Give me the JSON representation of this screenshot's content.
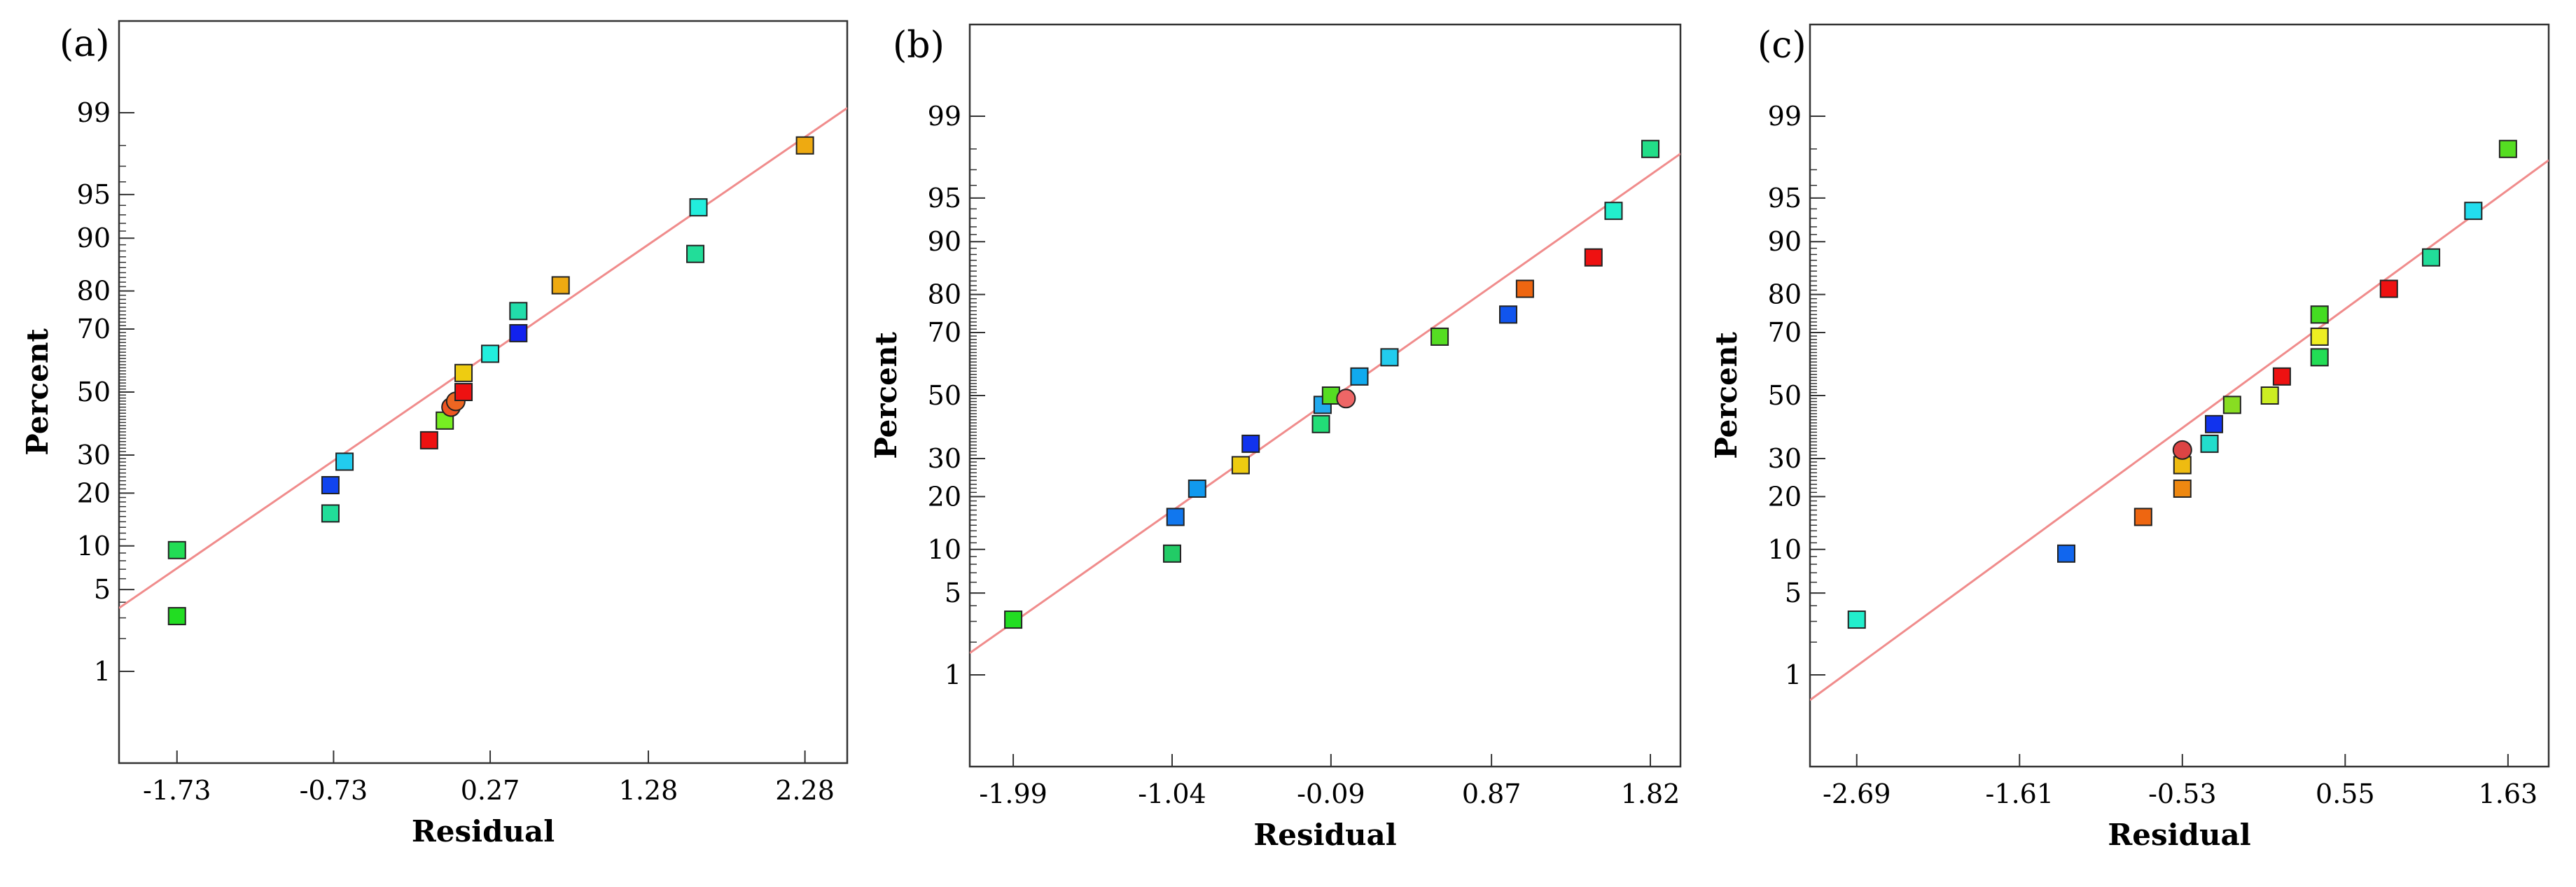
{
  "colors": {
    "fit_line": "#f08c8c",
    "frame": "#333333",
    "marker_stroke": "#222222"
  },
  "chart_data": [
    {
      "type": "scatter",
      "panel_label": "(a)",
      "title": "",
      "xlabel": "Residual",
      "ylabel": "Percent",
      "x_ticks": [
        "-1.73",
        "-0.73",
        "0.27",
        "1.28",
        "2.28"
      ],
      "y_ticks": [
        "1",
        "5",
        "10",
        "20",
        "30",
        "50",
        "70",
        "80",
        "90",
        "95",
        "99"
      ],
      "xlim": [
        -2.1,
        2.55
      ],
      "ylim_percent": [
        0.1,
        99.9
      ],
      "fit_line": {
        "x0": -2.1,
        "p0": 3.6,
        "x1": 2.55,
        "p1": 99.1
      },
      "points": [
        {
          "x": -1.73,
          "p": 3.1,
          "color": "#22dd22",
          "shape": "square"
        },
        {
          "x": -1.73,
          "p": 9.4,
          "color": "#22dd55",
          "shape": "square"
        },
        {
          "x": -0.75,
          "p": 15.6,
          "color": "#22dd99",
          "shape": "square"
        },
        {
          "x": -0.75,
          "p": 21.9,
          "color": "#1144ee",
          "shape": "square"
        },
        {
          "x": -0.66,
          "p": 28.1,
          "color": "#22ccee",
          "shape": "square"
        },
        {
          "x": -0.12,
          "p": 34.4,
          "color": "#ee1111",
          "shape": "square"
        },
        {
          "x": -0.02,
          "p": 40.6,
          "color": "#77ee22",
          "shape": "square"
        },
        {
          "x": 0.02,
          "p": 45.0,
          "color": "#ee5522",
          "shape": "circle"
        },
        {
          "x": 0.05,
          "p": 46.9,
          "color": "#ee6622",
          "shape": "circle"
        },
        {
          "x": 0.1,
          "p": 50.0,
          "color": "#ee1111",
          "shape": "square"
        },
        {
          "x": 0.1,
          "p": 56.3,
          "color": "#eecc11",
          "shape": "square"
        },
        {
          "x": 0.27,
          "p": 62.5,
          "color": "#22eedd",
          "shape": "square"
        },
        {
          "x": 0.45,
          "p": 68.8,
          "color": "#1122ee",
          "shape": "square"
        },
        {
          "x": 0.45,
          "p": 75.0,
          "color": "#22ddaa",
          "shape": "square"
        },
        {
          "x": 0.72,
          "p": 81.3,
          "color": "#eeaa11",
          "shape": "square"
        },
        {
          "x": 1.58,
          "p": 87.5,
          "color": "#22dd99",
          "shape": "square"
        },
        {
          "x": 1.6,
          "p": 93.8,
          "color": "#22eedd",
          "shape": "square"
        },
        {
          "x": 2.28,
          "p": 98.0,
          "color": "#eeaa11",
          "shape": "square"
        }
      ]
    },
    {
      "type": "scatter",
      "panel_label": "(b)",
      "title": "",
      "xlabel": "Residual",
      "ylabel": "Percent",
      "x_ticks": [
        "-1.99",
        "-1.04",
        "-0.09",
        "0.87",
        "1.82"
      ],
      "y_ticks": [
        "1",
        "5",
        "10",
        "20",
        "30",
        "50",
        "70",
        "80",
        "90",
        "95",
        "99"
      ],
      "xlim": [
        -2.25,
        2.0
      ],
      "ylim_percent": [
        0.1,
        99.9
      ],
      "fit_line": {
        "x0": -2.25,
        "p0": 1.6,
        "x1": 2.0,
        "p1": 97.8
      },
      "points": [
        {
          "x": -1.99,
          "p": 3.1,
          "color": "#22dd22",
          "shape": "square"
        },
        {
          "x": -1.04,
          "p": 9.4,
          "color": "#22cc66",
          "shape": "square"
        },
        {
          "x": -1.02,
          "p": 15.6,
          "color": "#1177ee",
          "shape": "square"
        },
        {
          "x": -0.89,
          "p": 21.9,
          "color": "#1199ee",
          "shape": "square"
        },
        {
          "x": -0.63,
          "p": 28.1,
          "color": "#eecc11",
          "shape": "square"
        },
        {
          "x": -0.57,
          "p": 34.4,
          "color": "#1133ee",
          "shape": "square"
        },
        {
          "x": -0.15,
          "p": 40.6,
          "color": "#22dd77",
          "shape": "square"
        },
        {
          "x": -0.14,
          "p": 46.9,
          "color": "#22aaee",
          "shape": "square"
        },
        {
          "x": -0.09,
          "p": 50.0,
          "color": "#55dd22",
          "shape": "square"
        },
        {
          "x": 0.0,
          "p": 49.0,
          "color": "#ee6666",
          "shape": "circle"
        },
        {
          "x": 0.08,
          "p": 56.3,
          "color": "#11aaee",
          "shape": "square"
        },
        {
          "x": 0.26,
          "p": 62.5,
          "color": "#22ccee",
          "shape": "square"
        },
        {
          "x": 0.56,
          "p": 68.8,
          "color": "#55dd22",
          "shape": "square"
        },
        {
          "x": 0.97,
          "p": 75.0,
          "color": "#1155ee",
          "shape": "square"
        },
        {
          "x": 1.07,
          "p": 81.3,
          "color": "#ee6611",
          "shape": "square"
        },
        {
          "x": 1.48,
          "p": 87.5,
          "color": "#ee1111",
          "shape": "square"
        },
        {
          "x": 1.6,
          "p": 93.8,
          "color": "#22eecc",
          "shape": "square"
        },
        {
          "x": 1.82,
          "p": 98.0,
          "color": "#22dd88",
          "shape": "square"
        }
      ]
    },
    {
      "type": "scatter",
      "panel_label": "(c)",
      "title": "",
      "xlabel": "Residual",
      "ylabel": "Percent",
      "x_ticks": [
        "-2.69",
        "-1.61",
        "-0.53",
        "0.55",
        "1.63"
      ],
      "y_ticks": [
        "1",
        "5",
        "10",
        "20",
        "30",
        "50",
        "70",
        "80",
        "90",
        "95",
        "99"
      ],
      "xlim": [
        -3.0,
        1.9
      ],
      "ylim_percent": [
        0.1,
        99.9
      ],
      "fit_line": {
        "x0": -3.0,
        "p0": 0.56,
        "x1": 1.9,
        "p1": 97.5
      },
      "points": [
        {
          "x": -2.69,
          "p": 3.1,
          "color": "#22eecc",
          "shape": "square"
        },
        {
          "x": -1.3,
          "p": 9.4,
          "color": "#1166ee",
          "shape": "square"
        },
        {
          "x": -0.79,
          "p": 15.6,
          "color": "#ee6611",
          "shape": "square"
        },
        {
          "x": -0.53,
          "p": 21.9,
          "color": "#ee8811",
          "shape": "square"
        },
        {
          "x": -0.53,
          "p": 28.1,
          "color": "#eebb11",
          "shape": "square"
        },
        {
          "x": -0.53,
          "p": 32.5,
          "color": "#dd4444",
          "shape": "circle"
        },
        {
          "x": -0.35,
          "p": 34.4,
          "color": "#22ddcc",
          "shape": "square"
        },
        {
          "x": -0.32,
          "p": 40.6,
          "color": "#1133ee",
          "shape": "square"
        },
        {
          "x": -0.2,
          "p": 46.9,
          "color": "#88dd22",
          "shape": "square"
        },
        {
          "x": 0.05,
          "p": 50.0,
          "color": "#ccee22",
          "shape": "square"
        },
        {
          "x": 0.13,
          "p": 56.3,
          "color": "#ee1111",
          "shape": "square"
        },
        {
          "x": 0.38,
          "p": 62.5,
          "color": "#22dd55",
          "shape": "square"
        },
        {
          "x": 0.38,
          "p": 68.8,
          "color": "#eeee22",
          "shape": "square"
        },
        {
          "x": 0.38,
          "p": 75.0,
          "color": "#44dd22",
          "shape": "square"
        },
        {
          "x": 0.84,
          "p": 81.3,
          "color": "#ee1111",
          "shape": "square"
        },
        {
          "x": 1.12,
          "p": 87.5,
          "color": "#22dd99",
          "shape": "square"
        },
        {
          "x": 1.4,
          "p": 93.8,
          "color": "#22ddee",
          "shape": "square"
        },
        {
          "x": 1.63,
          "p": 98.0,
          "color": "#55dd22",
          "shape": "square"
        }
      ]
    }
  ]
}
